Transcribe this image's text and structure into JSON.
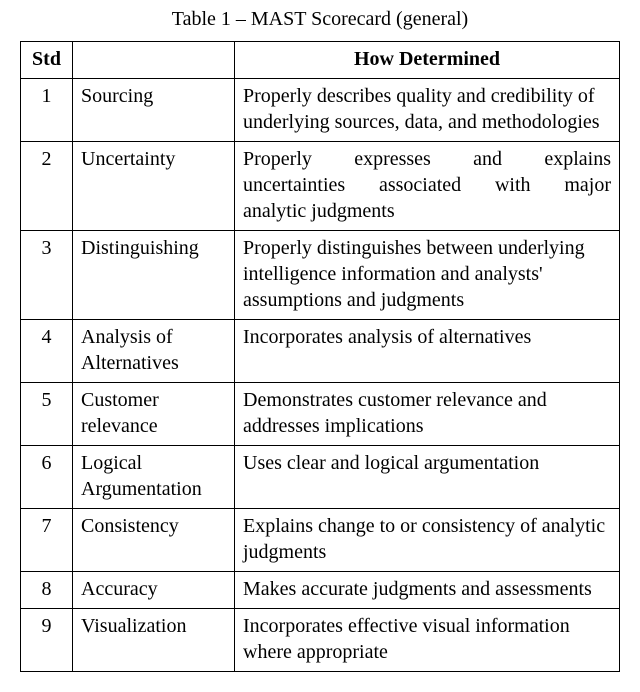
{
  "caption": "Table 1 – MAST Scorecard (general)",
  "headers": {
    "std": "Std",
    "name": "",
    "det": "How Determined"
  },
  "rows": [
    {
      "std": "1",
      "name": "Sourcing",
      "det": "Properly describes quality and credibility of underlying sources, data, and methodologies"
    },
    {
      "std": "2",
      "name": "Uncertainty",
      "det_line1": "Properly expresses and explains",
      "det_line2": "uncertainties associated with major",
      "det_line3": "analytic judgments"
    },
    {
      "std": "3",
      "name": "Distinguishing",
      "det": "Properly distinguishes between underlying intelligence information and analysts' assumptions and judgments"
    },
    {
      "std": "4",
      "name": "Analysis of Alternatives",
      "det": "Incorporates analysis of alternatives"
    },
    {
      "std": "5",
      "name": "Customer relevance",
      "det": "Demonstrates customer relevance and addresses implications"
    },
    {
      "std": "6",
      "name": "Logical Argumentation",
      "det": "Uses clear and logical argumentation"
    },
    {
      "std": "7",
      "name": "Consistency",
      "det": "Explains change to or consistency of analytic judgments"
    },
    {
      "std": "8",
      "name": "Accuracy",
      "det": "Makes accurate judgments and assessments"
    },
    {
      "std": "9",
      "name": "Visualization",
      "det": "Incorporates effective visual information where appropriate"
    }
  ],
  "style": {
    "font_family": "Times New Roman",
    "font_size_pt": 15,
    "border_color": "#000000",
    "background_color": "#ffffff",
    "text_color": "#000000"
  }
}
